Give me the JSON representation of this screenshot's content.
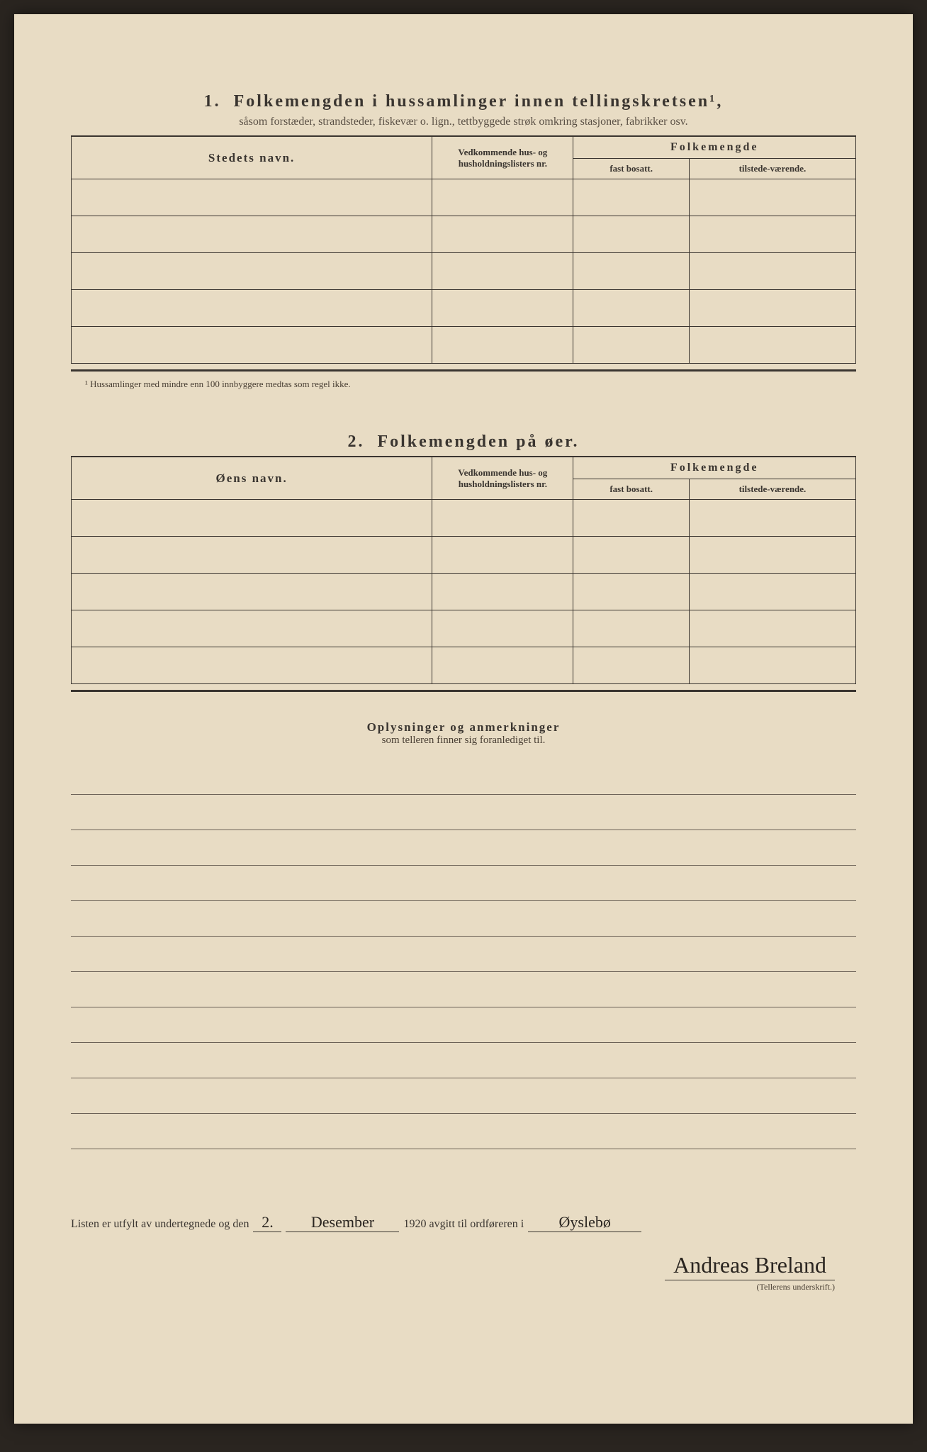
{
  "section1": {
    "number": "1.",
    "title": "Folkemengden i hussamlinger innen tellingskretsen¹,",
    "subtitle": "såsom forstæder, strandsteder, fiskevær o. lign., tettbyggede strøk omkring stasjoner, fabrikker osv.",
    "col_name": "Stedets navn.",
    "col_ref": "Vedkommende hus- og husholdningslisters nr.",
    "col_folk": "Folkemengde",
    "col_fast": "fast bosatt.",
    "col_tilstede": "tilstede-værende.",
    "footnote": "¹ Hussamlinger med mindre enn 100 innbyggere medtas som regel ikke.",
    "rows": 5
  },
  "section2": {
    "number": "2.",
    "title": "Folkemengden på øer.",
    "col_name": "Øens navn.",
    "col_ref": "Vedkommende hus- og husholdningslisters nr.",
    "col_folk": "Folkemengde",
    "col_fast": "fast bosatt.",
    "col_tilstede": "tilstede-værende.",
    "rows": 5
  },
  "remarks": {
    "title": "Oplysninger og anmerkninger",
    "subtitle": "som telleren finner sig foranlediget til.",
    "lines": 11
  },
  "signature": {
    "prefix": "Listen er utfylt av undertegnede og den",
    "day": "2.",
    "month": "Desember",
    "year_suffix": "1920 avgitt til ordføreren i",
    "place": "Øyslebø",
    "name": "Andreas Breland",
    "caption": "(Tellerens underskrift.)"
  }
}
